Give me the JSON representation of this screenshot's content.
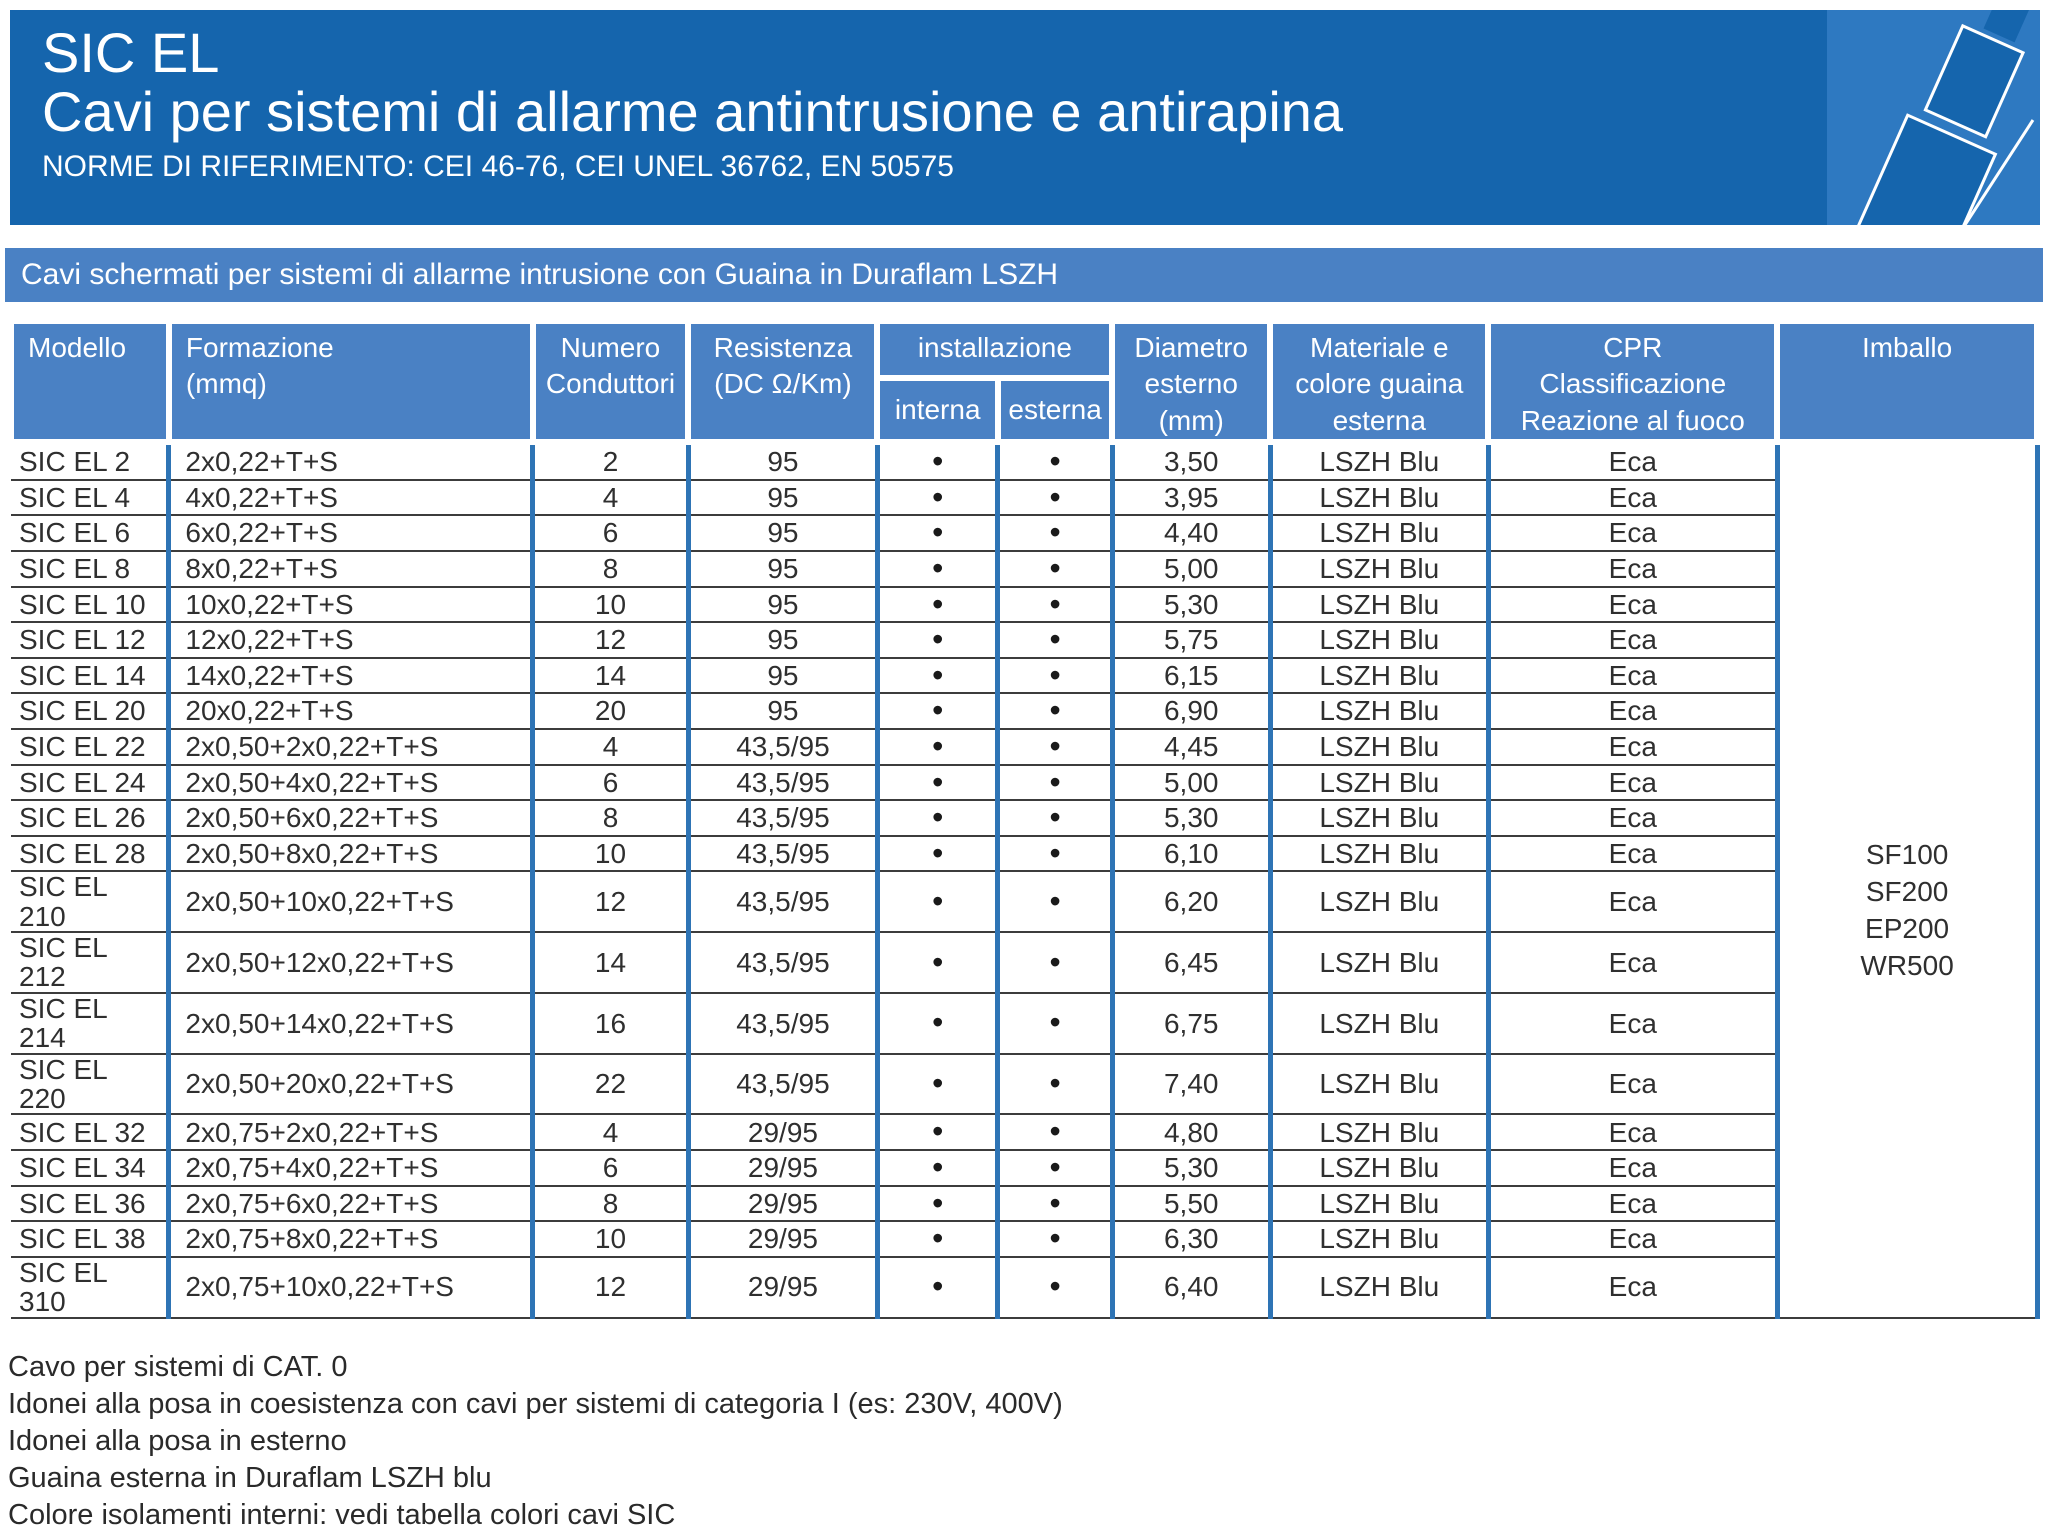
{
  "banner": {
    "title": "SIC EL",
    "subtitle": "Cavi per sistemi di allarme antintrusione e antirapina",
    "norms": "NORME DI RIFERIMENTO: CEI 46-76, CEI UNEL 36762, EN 50575"
  },
  "section_band": {
    "label": "Cavi schermati per sistemi di allarme intrusione con Guaina in Duraflam LSZH"
  },
  "colors": {
    "banner_blue": "#1565ad",
    "panel_blue": "#2e79c1",
    "header_blue": "#4a81c4",
    "column_line_blue": "#2e74b5",
    "row_line": "#3c3c3c"
  },
  "icons": {
    "cable_illustration": "cable-plug-diagonal"
  },
  "table": {
    "headers": {
      "modello": "Modello",
      "formazione": "Formazione\n(mmq)",
      "numero": "Numero\nConduttori",
      "resistenza": "Resistenza\n(DC Ω/Km)",
      "installazione": "installazione",
      "interna": "interna",
      "esterna": "esterna",
      "diametro": "Diametro\nesterno\n(mm)",
      "materiale": "Materiale e\ncolore guaina\nesterna",
      "cpr": "CPR\nClassificazione\nReazione al fuoco",
      "imballo": "Imballo"
    },
    "imballo_values": "SF100\nSF200\nEP200\nWR500",
    "rows": [
      {
        "model": "SIC EL 2",
        "formation": "2x0,22+T+S",
        "conductors": "2",
        "resistance": "95",
        "interna": "•",
        "esterna": "•",
        "diameter": "3,50",
        "sheath": "LSZH Blu",
        "cpr": "Eca"
      },
      {
        "model": "SIC EL 4",
        "formation": "4x0,22+T+S",
        "conductors": "4",
        "resistance": "95",
        "interna": "•",
        "esterna": "•",
        "diameter": "3,95",
        "sheath": "LSZH Blu",
        "cpr": "Eca"
      },
      {
        "model": "SIC EL 6",
        "formation": "6x0,22+T+S",
        "conductors": "6",
        "resistance": "95",
        "interna": "•",
        "esterna": "•",
        "diameter": "4,40",
        "sheath": "LSZH Blu",
        "cpr": "Eca"
      },
      {
        "model": "SIC EL 8",
        "formation": "8x0,22+T+S",
        "conductors": "8",
        "resistance": "95",
        "interna": "•",
        "esterna": "•",
        "diameter": "5,00",
        "sheath": "LSZH Blu",
        "cpr": "Eca"
      },
      {
        "model": "SIC EL 10",
        "formation": "10x0,22+T+S",
        "conductors": "10",
        "resistance": "95",
        "interna": "•",
        "esterna": "•",
        "diameter": "5,30",
        "sheath": "LSZH Blu",
        "cpr": "Eca"
      },
      {
        "model": "SIC EL 12",
        "formation": "12x0,22+T+S",
        "conductors": "12",
        "resistance": "95",
        "interna": "•",
        "esterna": "•",
        "diameter": "5,75",
        "sheath": "LSZH Blu",
        "cpr": "Eca"
      },
      {
        "model": "SIC EL 14",
        "formation": "14x0,22+T+S",
        "conductors": "14",
        "resistance": "95",
        "interna": "•",
        "esterna": "•",
        "diameter": "6,15",
        "sheath": "LSZH Blu",
        "cpr": "Eca"
      },
      {
        "model": "SIC EL 20",
        "formation": "20x0,22+T+S",
        "conductors": "20",
        "resistance": "95",
        "interna": "•",
        "esterna": "•",
        "diameter": "6,90",
        "sheath": "LSZH Blu",
        "cpr": "Eca"
      },
      {
        "model": "SIC EL 22",
        "formation": "2x0,50+2x0,22+T+S",
        "conductors": "4",
        "resistance": "43,5/95",
        "interna": "•",
        "esterna": "•",
        "diameter": "4,45",
        "sheath": "LSZH Blu",
        "cpr": "Eca"
      },
      {
        "model": "SIC EL 24",
        "formation": "2x0,50+4x0,22+T+S",
        "conductors": "6",
        "resistance": "43,5/95",
        "interna": "•",
        "esterna": "•",
        "diameter": "5,00",
        "sheath": "LSZH Blu",
        "cpr": "Eca"
      },
      {
        "model": "SIC EL 26",
        "formation": "2x0,50+6x0,22+T+S",
        "conductors": "8",
        "resistance": "43,5/95",
        "interna": "•",
        "esterna": "•",
        "diameter": "5,30",
        "sheath": "LSZH Blu",
        "cpr": "Eca"
      },
      {
        "model": "SIC EL 28",
        "formation": "2x0,50+8x0,22+T+S",
        "conductors": "10",
        "resistance": "43,5/95",
        "interna": "•",
        "esterna": "•",
        "diameter": "6,10",
        "sheath": "LSZH Blu",
        "cpr": "Eca"
      },
      {
        "model": "SIC EL 210",
        "formation": "2x0,50+10x0,22+T+S",
        "conductors": "12",
        "resistance": "43,5/95",
        "interna": "•",
        "esterna": "•",
        "diameter": "6,20",
        "sheath": "LSZH Blu",
        "cpr": "Eca"
      },
      {
        "model": "SIC EL 212",
        "formation": "2x0,50+12x0,22+T+S",
        "conductors": "14",
        "resistance": "43,5/95",
        "interna": "•",
        "esterna": "•",
        "diameter": "6,45",
        "sheath": "LSZH Blu",
        "cpr": "Eca"
      },
      {
        "model": "SIC EL 214",
        "formation": "2x0,50+14x0,22+T+S",
        "conductors": "16",
        "resistance": "43,5/95",
        "interna": "•",
        "esterna": "•",
        "diameter": "6,75",
        "sheath": "LSZH Blu",
        "cpr": "Eca"
      },
      {
        "model": "SIC EL 220",
        "formation": "2x0,50+20x0,22+T+S",
        "conductors": "22",
        "resistance": "43,5/95",
        "interna": "•",
        "esterna": "•",
        "diameter": "7,40",
        "sheath": "LSZH Blu",
        "cpr": "Eca"
      },
      {
        "model": "SIC EL 32",
        "formation": "2x0,75+2x0,22+T+S",
        "conductors": "4",
        "resistance": "29/95",
        "interna": "•",
        "esterna": "•",
        "diameter": "4,80",
        "sheath": "LSZH Blu",
        "cpr": "Eca"
      },
      {
        "model": "SIC EL 34",
        "formation": "2x0,75+4x0,22+T+S",
        "conductors": "6",
        "resistance": "29/95",
        "interna": "•",
        "esterna": "•",
        "diameter": "5,30",
        "sheath": "LSZH Blu",
        "cpr": "Eca"
      },
      {
        "model": "SIC EL 36",
        "formation": "2x0,75+6x0,22+T+S",
        "conductors": "8",
        "resistance": "29/95",
        "interna": "•",
        "esterna": "•",
        "diameter": "5,50",
        "sheath": "LSZH Blu",
        "cpr": "Eca"
      },
      {
        "model": "SIC EL 38",
        "formation": "2x0,75+8x0,22+T+S",
        "conductors": "10",
        "resistance": "29/95",
        "interna": "•",
        "esterna": "•",
        "diameter": "6,30",
        "sheath": "LSZH Blu",
        "cpr": "Eca"
      },
      {
        "model": "SIC EL 310",
        "formation": "2x0,75+10x0,22+T+S",
        "conductors": "12",
        "resistance": "29/95",
        "interna": "•",
        "esterna": "•",
        "diameter": "6,40",
        "sheath": "LSZH Blu",
        "cpr": "Eca"
      }
    ]
  },
  "footnotes": [
    "Cavo per sistemi di CAT. 0",
    "Idonei alla posa in coesistenza con cavi per sistemi di categoria I (es: 230V, 400V)",
    "Idonei alla posa in esterno",
    "Guaina esterna in Duraflam LSZH blu",
    "Colore isolamenti interni: vedi tabella colori cavi SIC"
  ]
}
